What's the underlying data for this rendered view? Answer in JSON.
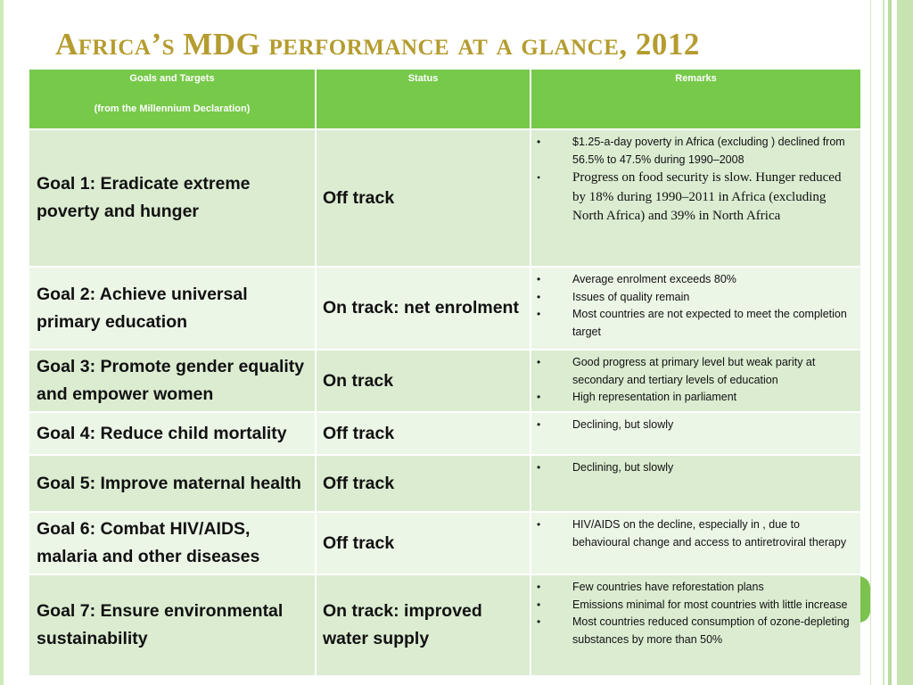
{
  "title": "Africa’s MDG performance at a glance, 2012",
  "table": {
    "headers": {
      "goal_line1": "Goals and Targets",
      "goal_line2": "(from the Millennium Declaration)",
      "status": "Status",
      "remarks": "Remarks"
    },
    "rows": [
      {
        "goal": "Goal 1: Eradicate extreme poverty and hunger",
        "status": "Off track",
        "remarks": [
          "$1.25-a-day poverty in Africa (excluding ) declined from 56.5% to 47.5% during 1990–2008",
          "Progress on food security is slow. Hunger reduced by 18% during 1990–2011 in Africa (excluding North Africa) and 39% in North Africa"
        ]
      },
      {
        "goal": "Goal 2: Achieve universal primary education",
        "status": "On track: net enrolment",
        "remarks": [
          "Average enrolment exceeds 80%",
          "Issues of quality remain",
          "Most countries are not expected to meet the completion target"
        ]
      },
      {
        "goal": "Goal 3: Promote gender equality and empower women",
        "status": "On track",
        "remarks": [
          "Good progress at primary level but weak parity at secondary and tertiary levels of education",
          "High representation in parliament"
        ]
      },
      {
        "goal": "Goal 4: Reduce child mortality",
        "status": "Off track",
        "remarks": [
          "Declining, but slowly"
        ]
      },
      {
        "goal": "Goal 5: Improve maternal health",
        "status": "Off track",
        "remarks": [
          "Declining, but slowly"
        ]
      },
      {
        "goal": "Goal 6: Combat HIV/AIDS, malaria and other diseases",
        "status": "Off track",
        "remarks": [
          "HIV/AIDS on the decline, especially in , due to behavioural change and access to antiretroviral therapy"
        ]
      },
      {
        "goal": "Goal 7: Ensure environmental sustainability",
        "status": "On track: improved water supply",
        "remarks": [
          "Few countries have reforestation plans",
          "Emissions minimal for most countries with little increase",
          "Most countries reduced consumption of ozone-depleting substances by more than 50%"
        ]
      }
    ]
  }
}
